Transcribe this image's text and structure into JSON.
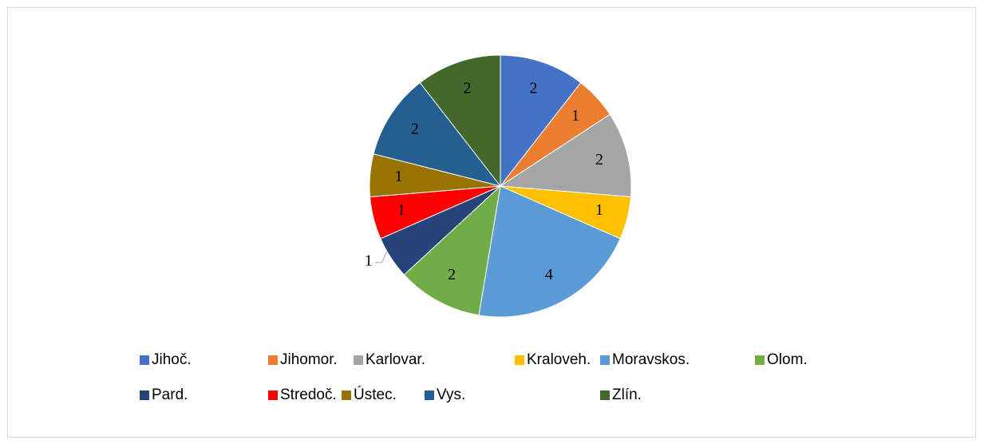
{
  "chart_data": {
    "type": "pie",
    "categories": [
      "Jihoč.",
      "Jihomor.",
      "Karlovar.",
      "Kraloveh.",
      "Moravskos.",
      "Olom.",
      "Pard.",
      "Stredoč.",
      "Ústec.",
      "Vys.",
      "Zlín."
    ],
    "values": [
      2,
      1,
      2,
      1,
      4,
      2,
      1,
      1,
      1,
      2,
      2
    ],
    "colors": [
      "#4472c4",
      "#ed7d31",
      "#a5a5a5",
      "#ffc000",
      "#5b9bd5",
      "#70ad47",
      "#264478",
      "#ff0000",
      "#997300",
      "#255e91",
      "#43682b"
    ],
    "legend": "bottom"
  }
}
